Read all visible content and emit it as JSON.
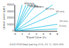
{
  "chart_data": {
    "type": "line",
    "xlabel": "Travel time (h)",
    "ylabel": "Linear wear (μm)",
    "caption": "ZrO2-PSZ/Steel pairing (5 N, 23 °C, 50% RH)",
    "xlim": [
      0,
      6
    ],
    "ylim": [
      0,
      4000
    ],
    "xticks": [
      0,
      1,
      2,
      3,
      4,
      5,
      6
    ],
    "yticks": [
      0,
      1000,
      2000,
      3000,
      4000
    ],
    "grid": false,
    "color": "#40c8e8",
    "series": [
      {
        "x": [
          0,
          1
        ],
        "values": [
          0,
          4000
        ]
      },
      {
        "x": [
          0,
          1.5384615384615385
        ],
        "values": [
          0,
          4000
        ]
      },
      {
        "x": [
          0,
          1.9047619047619047
        ],
        "values": [
          0,
          4000
        ]
      },
      {
        "x": [
          0,
          2.3529411764705883
        ],
        "values": [
          0,
          4000
        ]
      },
      {
        "x": [
          0,
          2.962962962962963
        ],
        "values": [
          0,
          4000
        ]
      },
      {
        "x": [
          0,
          5.333333333333333
        ],
        "values": [
          0,
          4000
        ]
      },
      {
        "x": [
          0,
          6
        ],
        "values": [
          0,
          2700
        ]
      },
      {
        "x": [
          0,
          6
        ],
        "values": [
          0,
          1020
        ]
      },
      {
        "x": [
          0,
          6
        ],
        "values": [
          0,
          300
        ]
      }
    ],
    "annotations": [
      {
        "text": "400 m/s",
        "x": 0.95,
        "y": 3800
      },
      {
        "text": "15 m/s",
        "x": 1.38,
        "y": 3588
      },
      {
        "text": "300 m/s",
        "x": 1.6,
        "y": 3360
      },
      {
        "text": "175 m/s",
        "x": 1.95,
        "y": 3315
      },
      {
        "text": "250 m/s",
        "x": 2.4,
        "y": 3240
      },
      {
        "text": "80 m/s",
        "x": 4.0,
        "y": 3000
      },
      {
        "text": "50 m/s",
        "x": 5.5,
        "y": 2475
      },
      {
        "text": "15 m/s",
        "x": 6.0,
        "y": 1020
      },
      {
        "text": "5 m/s",
        "x": 6.0,
        "y": 300
      }
    ]
  }
}
